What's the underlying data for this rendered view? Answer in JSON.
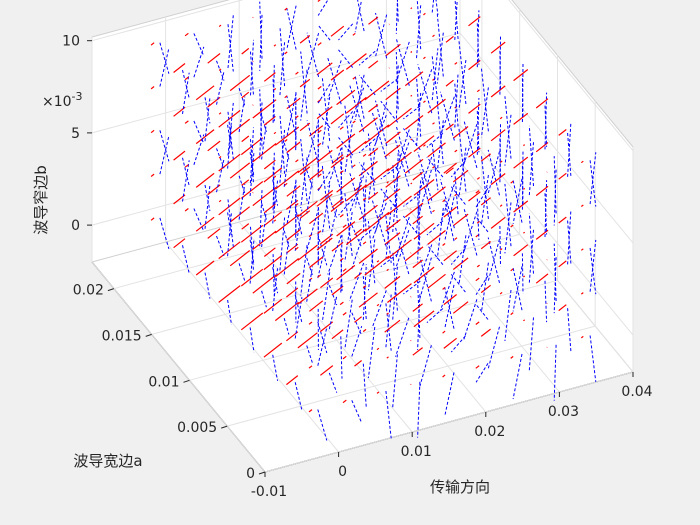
{
  "chart_data": {
    "type": "quiver3",
    "title": "",
    "xlabel": "传输方向",
    "ylabel": "波导宽边a",
    "zlabel": "波导窄边b",
    "x_ticks": [
      "-0.01",
      "0",
      "0.01",
      "0.02",
      "0.03",
      "0.04"
    ],
    "y_ticks": [
      "0",
      "0.005",
      "0.01",
      "0.015",
      "0.02"
    ],
    "z_ticks": [
      "0",
      "5",
      "10"
    ],
    "z_exponent": "×10^-3",
    "xlim": [
      -0.01,
      0.04
    ],
    "ylim": [
      0,
      0.0229
    ],
    "zlim": [
      -0.002,
      0.0102
    ],
    "grid": true,
    "series": [
      {
        "field": "E",
        "color": "#ff0000",
        "style": "solid"
      },
      {
        "field": "H",
        "color": "#0000ff",
        "style": "dashed"
      }
    ],
    "grid_points": {
      "x_count": 9,
      "y_count": 8,
      "z_count": 5
    }
  }
}
